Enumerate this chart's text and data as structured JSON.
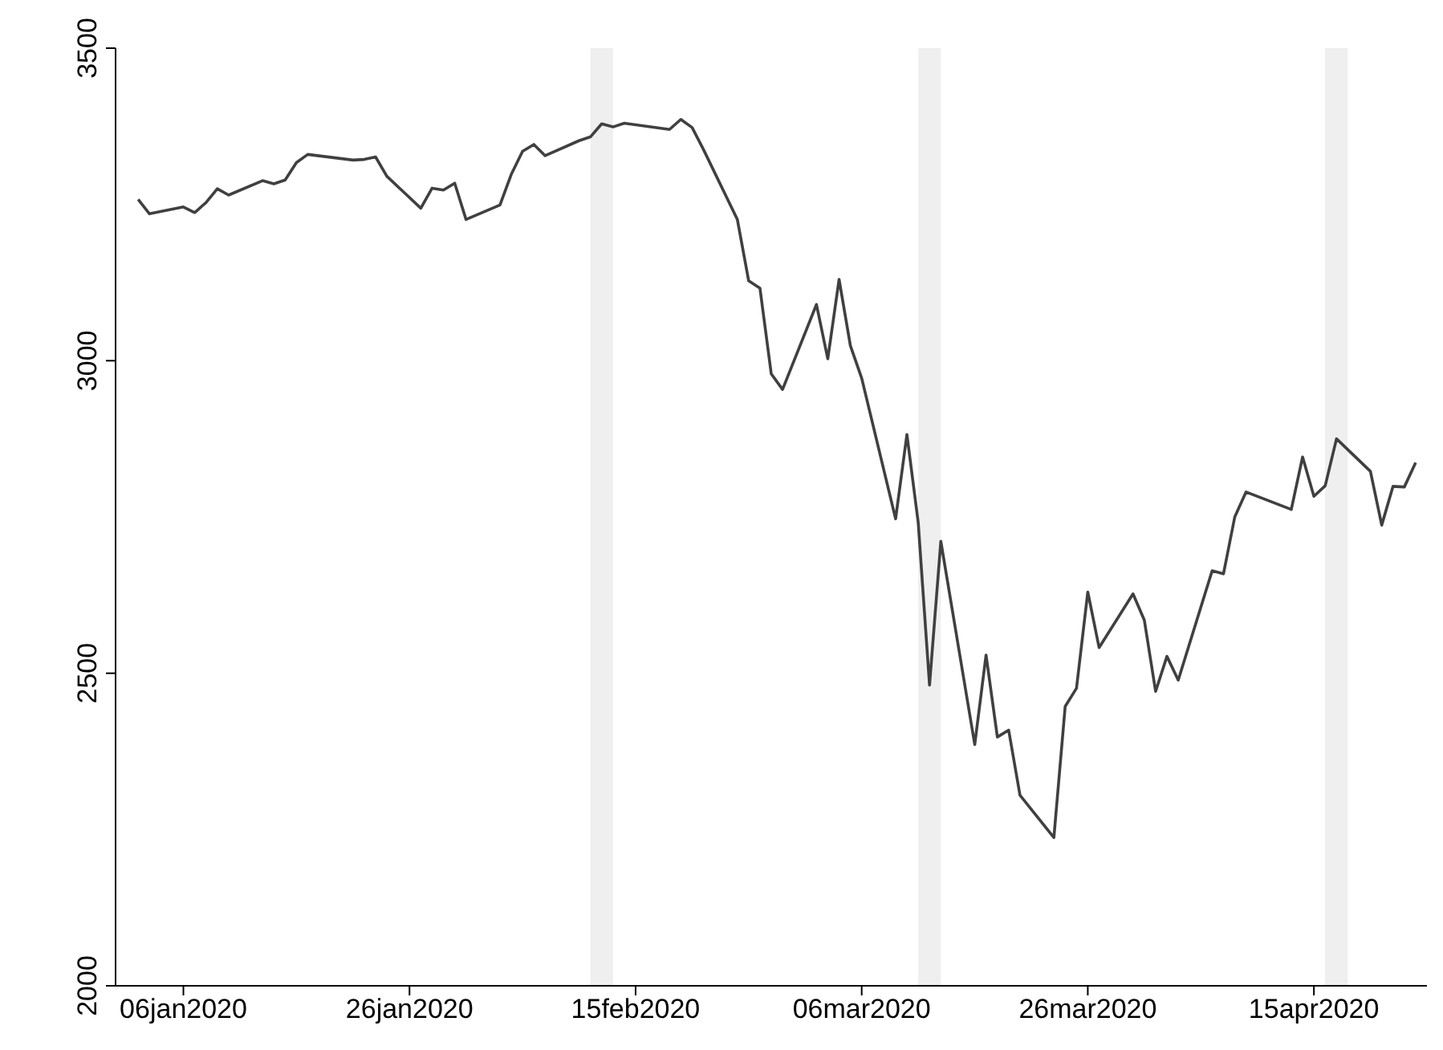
{
  "chart_data": {
    "type": "line",
    "x": [
      "2020-01-02",
      "2020-01-03",
      "2020-01-06",
      "2020-01-07",
      "2020-01-08",
      "2020-01-09",
      "2020-01-10",
      "2020-01-13",
      "2020-01-14",
      "2020-01-15",
      "2020-01-16",
      "2020-01-17",
      "2020-01-21",
      "2020-01-22",
      "2020-01-23",
      "2020-01-24",
      "2020-01-27",
      "2020-01-28",
      "2020-01-29",
      "2020-01-30",
      "2020-01-31",
      "2020-02-03",
      "2020-02-04",
      "2020-02-05",
      "2020-02-06",
      "2020-02-07",
      "2020-02-10",
      "2020-02-11",
      "2020-02-12",
      "2020-02-13",
      "2020-02-14",
      "2020-02-18",
      "2020-02-19",
      "2020-02-20",
      "2020-02-21",
      "2020-02-24",
      "2020-02-25",
      "2020-02-26",
      "2020-02-27",
      "2020-02-28",
      "2020-03-02",
      "2020-03-03",
      "2020-03-04",
      "2020-03-05",
      "2020-03-06",
      "2020-03-09",
      "2020-03-10",
      "2020-03-11",
      "2020-03-12",
      "2020-03-13",
      "2020-03-16",
      "2020-03-17",
      "2020-03-18",
      "2020-03-19",
      "2020-03-20",
      "2020-03-23",
      "2020-03-24",
      "2020-03-25",
      "2020-03-26",
      "2020-03-27",
      "2020-03-30",
      "2020-03-31",
      "2020-04-01",
      "2020-04-02",
      "2020-04-03",
      "2020-04-06",
      "2020-04-07",
      "2020-04-08",
      "2020-04-09",
      "2020-04-13",
      "2020-04-14",
      "2020-04-15",
      "2020-04-16",
      "2020-04-17",
      "2020-04-20",
      "2020-04-21",
      "2020-04-22",
      "2020-04-23",
      "2020-04-24"
    ],
    "series": [
      {
        "color": "#404040",
        "values": [
          3258,
          3235,
          3246,
          3237,
          3253,
          3275,
          3265,
          3288,
          3283,
          3289,
          3317,
          3330,
          3321,
          3322,
          3326,
          3295,
          3244,
          3276,
          3273,
          3284,
          3226,
          3249,
          3298,
          3335,
          3346,
          3328,
          3352,
          3358,
          3379,
          3374,
          3380,
          3370,
          3386,
          3373,
          3338,
          3226,
          3128,
          3116,
          2979,
          2954,
          3090,
          3003,
          3130,
          3024,
          2972,
          2747,
          2882,
          2741,
          2481,
          2711,
          2386,
          2529,
          2398,
          2409,
          2305,
          2237,
          2447,
          2476,
          2630,
          2541,
          2627,
          2585,
          2471,
          2527,
          2489,
          2664,
          2659,
          2750,
          2790,
          2762,
          2846,
          2783,
          2800,
          2875,
          2823,
          2737,
          2799,
          2798,
          2837
        ]
      }
    ],
    "xlim": [
      "2019-12-31",
      "2020-04-25"
    ],
    "xticks": [
      {
        "value": "2020-01-06",
        "label": "06jan2020"
      },
      {
        "value": "2020-01-26",
        "label": "26jan2020"
      },
      {
        "value": "2020-02-15",
        "label": "15feb2020"
      },
      {
        "value": "2020-03-06",
        "label": "06mar2020"
      },
      {
        "value": "2020-03-26",
        "label": "26mar2020"
      },
      {
        "value": "2020-04-15",
        "label": "15apr2020"
      }
    ],
    "ylim": [
      2000,
      3500
    ],
    "yticks": [
      2000,
      2500,
      3000,
      3500
    ],
    "bands": [
      {
        "axis": "x",
        "from": "2020-02-11",
        "to": "2020-02-13",
        "color": "#efefef"
      },
      {
        "axis": "x",
        "from": "2020-03-11",
        "to": "2020-03-13",
        "color": "#efefef"
      },
      {
        "axis": "x",
        "from": "2020-04-16",
        "to": "2020-04-18",
        "color": "#efefef"
      }
    ],
    "grid": false,
    "legend": false,
    "marker": "none",
    "line_style": "solid"
  }
}
